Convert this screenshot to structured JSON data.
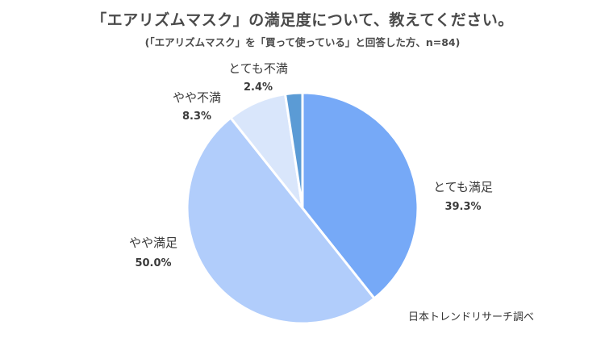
{
  "chart_data": {
    "type": "pie",
    "title": "「エアリズムマスク」の満足度について、教えてください。",
    "subtitle": "(「エアリズムマスク」を「買って使っている」と回答した方、n=84)",
    "categories": [
      "とても満足",
      "やや満足",
      "やや不満",
      "とても不満"
    ],
    "values": [
      39.3,
      50.0,
      8.3,
      2.4
    ],
    "value_labels": [
      "39.3%",
      "50.0%",
      "8.3%",
      "2.4%"
    ],
    "colors": [
      "#76a9f7",
      "#b1cdfb",
      "#d9e6fb",
      "#5b9bd5"
    ],
    "start_angle_deg": 0,
    "direction": "clockwise",
    "legend": "none"
  },
  "source": "日本トレンドリサーチ調べ"
}
